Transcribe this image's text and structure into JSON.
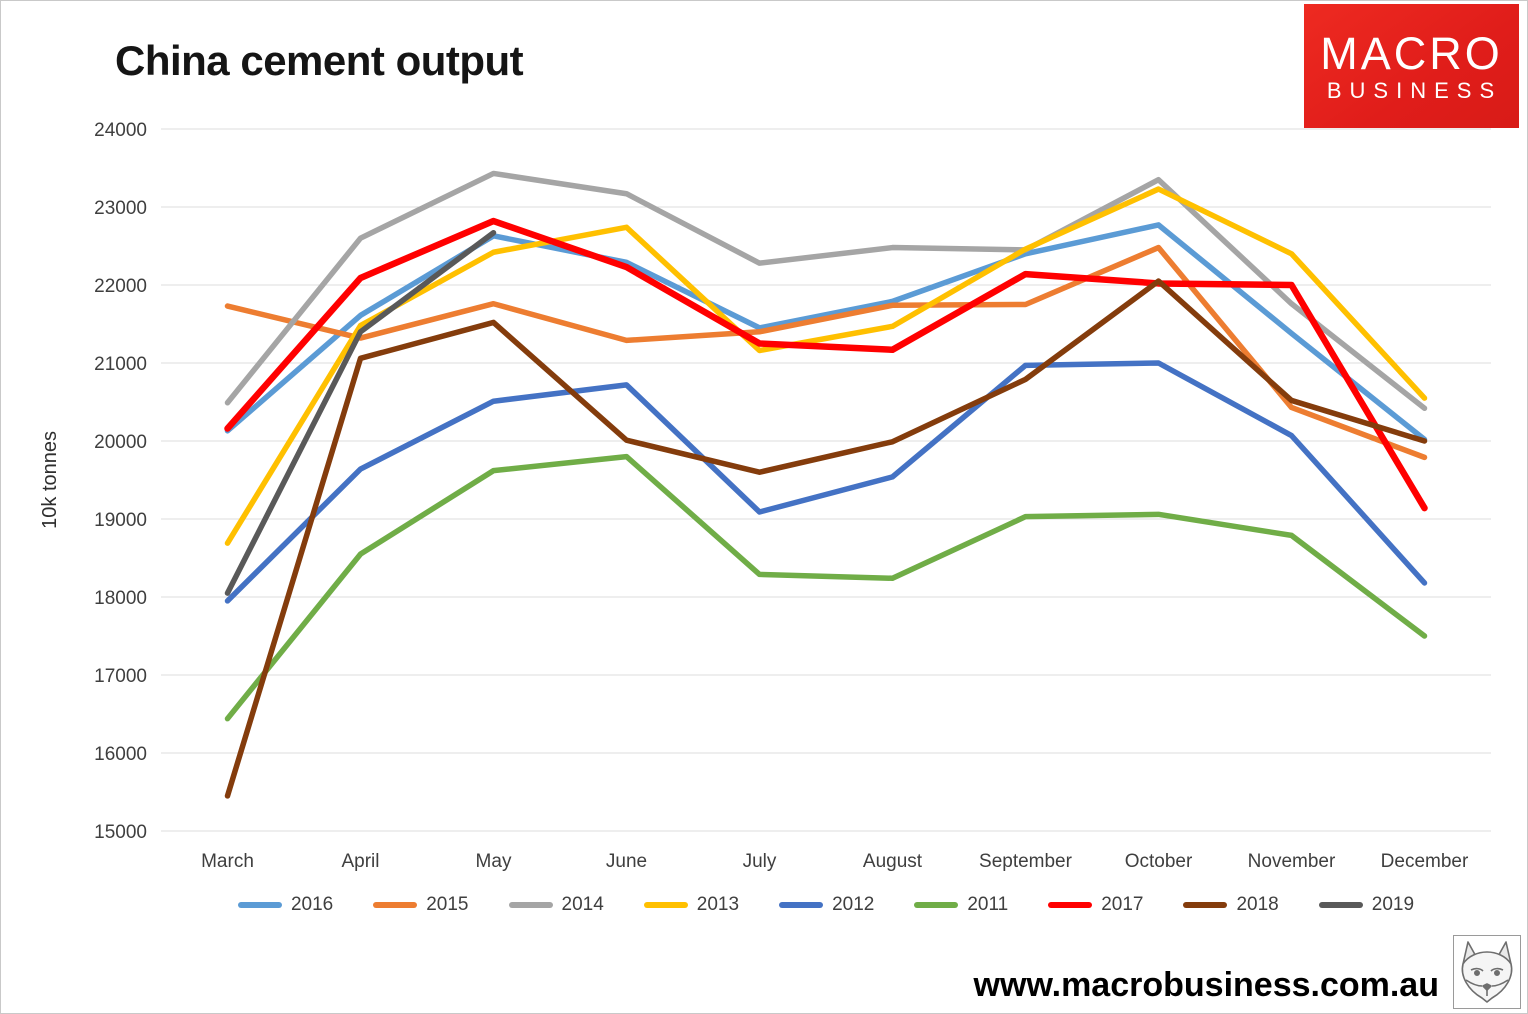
{
  "title": "China cement output",
  "logo": {
    "line1": "MACRO",
    "line2": "BUSINESS",
    "bg_color": "#E0201A",
    "text_color": "#ffffff"
  },
  "footer": {
    "url": "www.macrobusiness.com.au"
  },
  "chart_data": {
    "type": "line",
    "title": "China cement output",
    "xlabel": "",
    "ylabel": "10k tonnes",
    "ylim": [
      15000,
      24000
    ],
    "yticks": [
      15000,
      16000,
      17000,
      18000,
      19000,
      20000,
      21000,
      22000,
      23000,
      24000
    ],
    "grid": true,
    "legend_position": "bottom",
    "gridline_color": "#dcdcdc",
    "tick_label_color": "#3f3f3f",
    "categories": [
      "March",
      "April",
      "May",
      "June",
      "July",
      "August",
      "September",
      "October",
      "November",
      "December"
    ],
    "series": [
      {
        "name": "2016",
        "color": "#5B9BD5",
        "values": [
          20130,
          21610,
          22630,
          22290,
          21450,
          21790,
          22400,
          22770,
          21380,
          20020
        ]
      },
      {
        "name": "2015",
        "color": "#ED7D31",
        "values": [
          21730,
          21320,
          21760,
          21290,
          21400,
          21740,
          21750,
          22480,
          20430,
          19790
        ]
      },
      {
        "name": "2014",
        "color": "#A5A5A5",
        "values": [
          20490,
          22600,
          23430,
          23170,
          22280,
          22480,
          22450,
          23350,
          21760,
          20420
        ]
      },
      {
        "name": "2013",
        "color": "#FFC000",
        "values": [
          18690,
          21480,
          22420,
          22740,
          21160,
          21470,
          22460,
          23230,
          22400,
          20550
        ]
      },
      {
        "name": "2012",
        "color": "#4472C4",
        "values": [
          17950,
          19640,
          20510,
          20720,
          19090,
          19540,
          20970,
          21000,
          20070,
          18180
        ]
      },
      {
        "name": "2011",
        "color": "#70AD47",
        "values": [
          16440,
          18550,
          19620,
          19800,
          18290,
          18240,
          19030,
          19060,
          18790,
          17500
        ]
      },
      {
        "name": "2017",
        "color": "#FF0000",
        "values": [
          20160,
          22090,
          22820,
          22230,
          21250,
          21170,
          22140,
          22020,
          22000,
          19140
        ]
      },
      {
        "name": "2018",
        "color": "#843C0C",
        "values": [
          15450,
          21060,
          21520,
          20010,
          19600,
          19990,
          20790,
          22050,
          20520,
          20000
        ]
      },
      {
        "name": "2019",
        "color": "#595959",
        "values": [
          18050,
          21400,
          22670,
          null,
          null,
          null,
          null,
          null,
          null,
          null
        ]
      }
    ]
  }
}
